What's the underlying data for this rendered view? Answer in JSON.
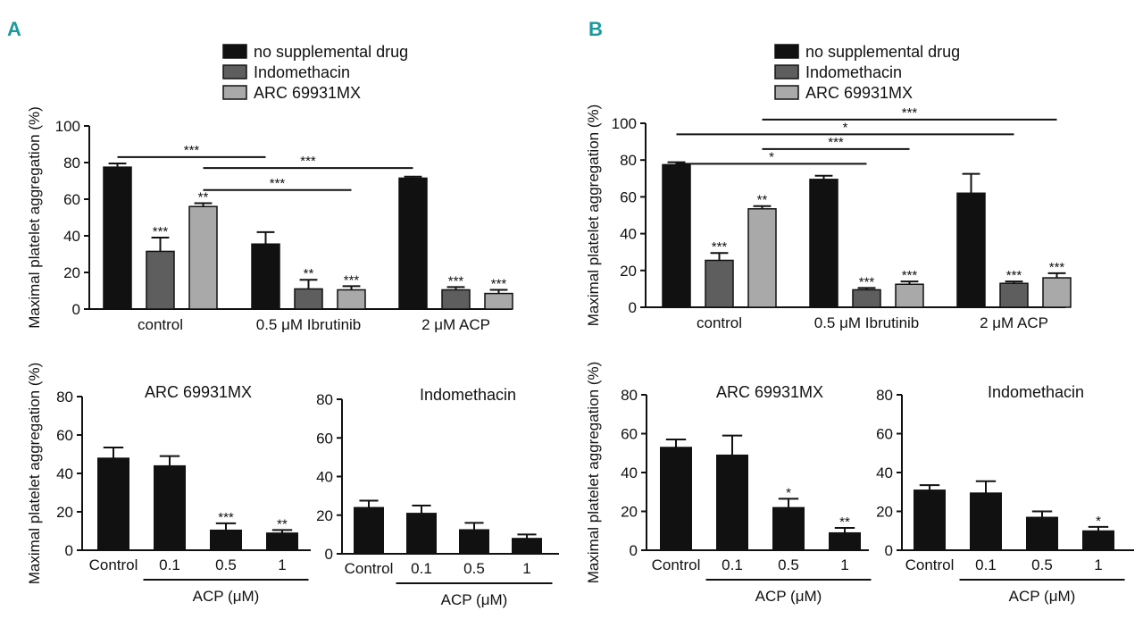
{
  "panels": {
    "A": {
      "label": "A"
    },
    "B": {
      "label": "B"
    }
  },
  "colors": {
    "black": "#111111",
    "dark_gray": "#5e5e5e",
    "light_gray": "#a9a9a9",
    "panel_letter": "#1a9a9a"
  },
  "chart_data": [
    {
      "id": "A-top",
      "type": "bar",
      "ylabel": "Maximal platelet aggregation (%)",
      "ylim": [
        0,
        100
      ],
      "yticks": [
        0,
        20,
        40,
        60,
        80,
        100
      ],
      "categories": [
        "control",
        "0.5 μM Ibrutinib",
        "2 μM ACP"
      ],
      "series": [
        {
          "name": "no supplemental drug",
          "color": "#111111",
          "values": [
            77.5,
            35.5,
            71.5
          ],
          "errors": [
            2,
            6.5,
            0.8
          ],
          "sig": [
            "",
            "",
            ""
          ]
        },
        {
          "name": "Indomethacin",
          "color": "#5e5e5e",
          "values": [
            31.5,
            11,
            10.5
          ],
          "errors": [
            7.5,
            5,
            1.5
          ],
          "sig": [
            "***",
            "**",
            "***"
          ]
        },
        {
          "name": "ARC 69931MX",
          "color": "#a9a9a9",
          "values": [
            56,
            10.5,
            8.5
          ],
          "errors": [
            1.8,
            2,
            2
          ],
          "sig": [
            "**",
            "***",
            "***"
          ]
        }
      ],
      "brackets": [
        {
          "from": [
            0,
            0
          ],
          "to": [
            1,
            0
          ],
          "level": 83,
          "label": "***"
        },
        {
          "from": [
            0,
            2
          ],
          "to": [
            2,
            0
          ],
          "level": 77,
          "label": "***"
        },
        {
          "from": [
            0,
            2
          ],
          "to": [
            1,
            2
          ],
          "level": 65,
          "label": "***"
        }
      ]
    },
    {
      "id": "B-top",
      "type": "bar",
      "ylabel": "Maximal platelet aggregation (%)",
      "ylim": [
        0,
        100
      ],
      "yticks": [
        0,
        20,
        40,
        60,
        80,
        100
      ],
      "categories": [
        "control",
        "0.5 μM Ibrutinib",
        "2 μM ACP"
      ],
      "series": [
        {
          "name": "no supplemental drug",
          "color": "#111111",
          "values": [
            77.5,
            69.5,
            62
          ],
          "errors": [
            1.3,
            2,
            10.5
          ],
          "sig": [
            "",
            "",
            ""
          ]
        },
        {
          "name": "Indomethacin",
          "color": "#5e5e5e",
          "values": [
            25.5,
            9.5,
            13
          ],
          "errors": [
            4,
            1,
            1
          ],
          "sig": [
            "***",
            "***",
            "***"
          ]
        },
        {
          "name": "ARC 69931MX",
          "color": "#a9a9a9",
          "values": [
            53.5,
            12.5,
            16
          ],
          "errors": [
            1.5,
            1.5,
            2.5
          ],
          "sig": [
            "**",
            "***",
            "***"
          ]
        }
      ],
      "brackets": [
        {
          "from": [
            0,
            2
          ],
          "to": [
            2,
            2
          ],
          "level": 102,
          "label": "***"
        },
        {
          "from": [
            0,
            0
          ],
          "to": [
            2,
            1
          ],
          "level": 94,
          "label": "*"
        },
        {
          "from": [
            0,
            2
          ],
          "to": [
            1,
            2
          ],
          "level": 86,
          "label": "***"
        },
        {
          "from": [
            0,
            0
          ],
          "to": [
            1,
            1
          ],
          "level": 78,
          "label": "*"
        }
      ]
    },
    {
      "id": "A-bottom-left",
      "type": "bar",
      "title": "ARC 69931MX",
      "ylabel": "Maximal platelet aggregation (%)",
      "ylim": [
        0,
        80
      ],
      "yticks": [
        0,
        20,
        40,
        60,
        80
      ],
      "categories": [
        "Control",
        "0.1",
        "0.5",
        "1"
      ],
      "values": [
        48,
        44,
        10.5,
        9
      ],
      "errors": [
        5.5,
        5,
        3.5,
        1.5
      ],
      "sig": [
        "",
        "",
        "***",
        "**"
      ],
      "xgroup_label": "ACP (μM)"
    },
    {
      "id": "A-bottom-right",
      "type": "bar",
      "title": "Indomethacin",
      "ylim": [
        0,
        80
      ],
      "yticks": [
        0,
        20,
        40,
        60,
        80
      ],
      "categories": [
        "Control",
        "0.1",
        "0.5",
        "1"
      ],
      "values": [
        24,
        21,
        12.5,
        8
      ],
      "errors": [
        3.5,
        4,
        3.5,
        2
      ],
      "sig": [
        "",
        "",
        "",
        ""
      ],
      "xgroup_label": "ACP (μM)"
    },
    {
      "id": "B-bottom-left",
      "type": "bar",
      "title": "ARC 69931MX",
      "ylabel": "Maximal platelet aggregation (%)",
      "ylim": [
        0,
        80
      ],
      "yticks": [
        0,
        20,
        40,
        60,
        80
      ],
      "categories": [
        "Control",
        "0.1",
        "0.5",
        "1"
      ],
      "values": [
        53,
        49,
        22,
        9
      ],
      "errors": [
        4,
        10,
        4.5,
        2.5
      ],
      "sig": [
        "",
        "",
        "*",
        "**"
      ],
      "xgroup_label": "ACP (μM)"
    },
    {
      "id": "B-bottom-right",
      "type": "bar",
      "title": "Indomethacin",
      "ylim": [
        0,
        80
      ],
      "yticks": [
        0,
        20,
        40,
        60,
        80
      ],
      "categories": [
        "Control",
        "0.1",
        "0.5",
        "1"
      ],
      "values": [
        31,
        29.5,
        17,
        10
      ],
      "errors": [
        2.5,
        6,
        3,
        2
      ],
      "sig": [
        "",
        "",
        "",
        "*"
      ],
      "xgroup_label": "ACP (μM)"
    }
  ]
}
